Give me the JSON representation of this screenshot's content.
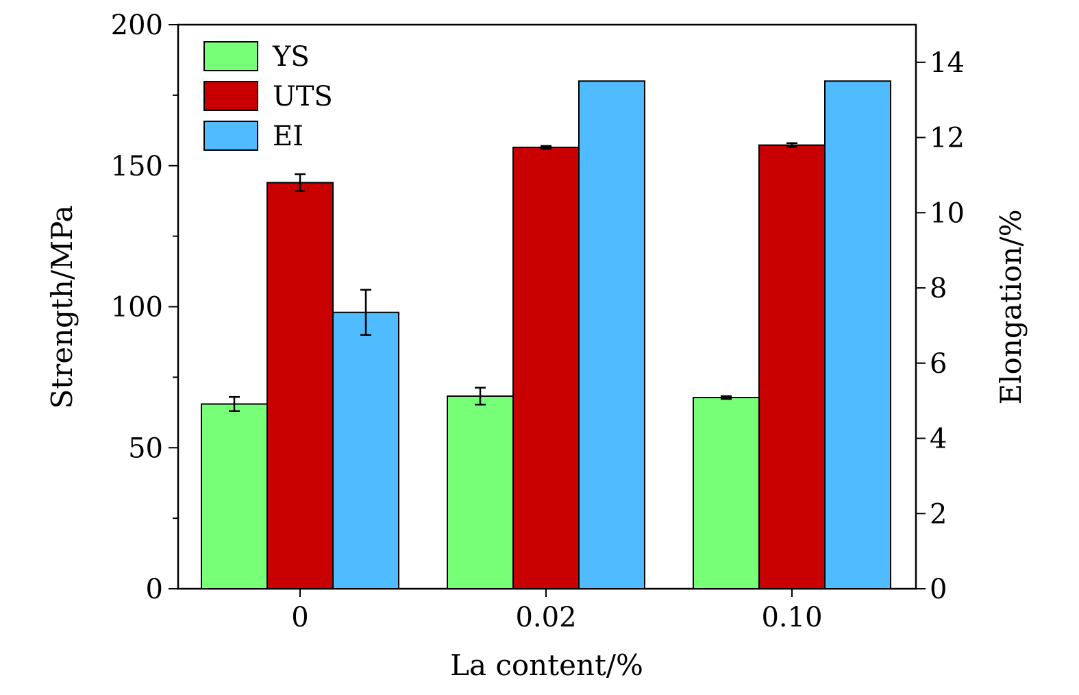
{
  "chart_data": {
    "type": "bar",
    "title": "",
    "xlabel": "La content/%",
    "ylabel": "Strength/MPa",
    "y2label": "Elongation/%",
    "categories": [
      "0",
      "0.02",
      "0.10"
    ],
    "ylim": [
      0,
      200
    ],
    "y2lim": [
      0,
      15
    ],
    "yticks": [
      0,
      50,
      100,
      150,
      200
    ],
    "y2ticks": [
      0,
      2,
      4,
      6,
      8,
      10,
      12,
      14
    ],
    "legend_position": "top-left",
    "series": [
      {
        "name": "YS",
        "axis": "left",
        "color": "#77ff77",
        "values": [
          65.5,
          68.3,
          67.8
        ],
        "errors": [
          2.5,
          3.0,
          0.5
        ]
      },
      {
        "name": "UTS",
        "axis": "left",
        "color": "#c80000",
        "values": [
          144,
          156.5,
          157.3
        ],
        "errors": [
          3.0,
          0.5,
          0.7
        ]
      },
      {
        "name": "EI",
        "axis": "right",
        "color": "#50bbff",
        "values": [
          7.35,
          13.5,
          13.5
        ],
        "errors": [
          0.6,
          0,
          0
        ]
      }
    ]
  }
}
